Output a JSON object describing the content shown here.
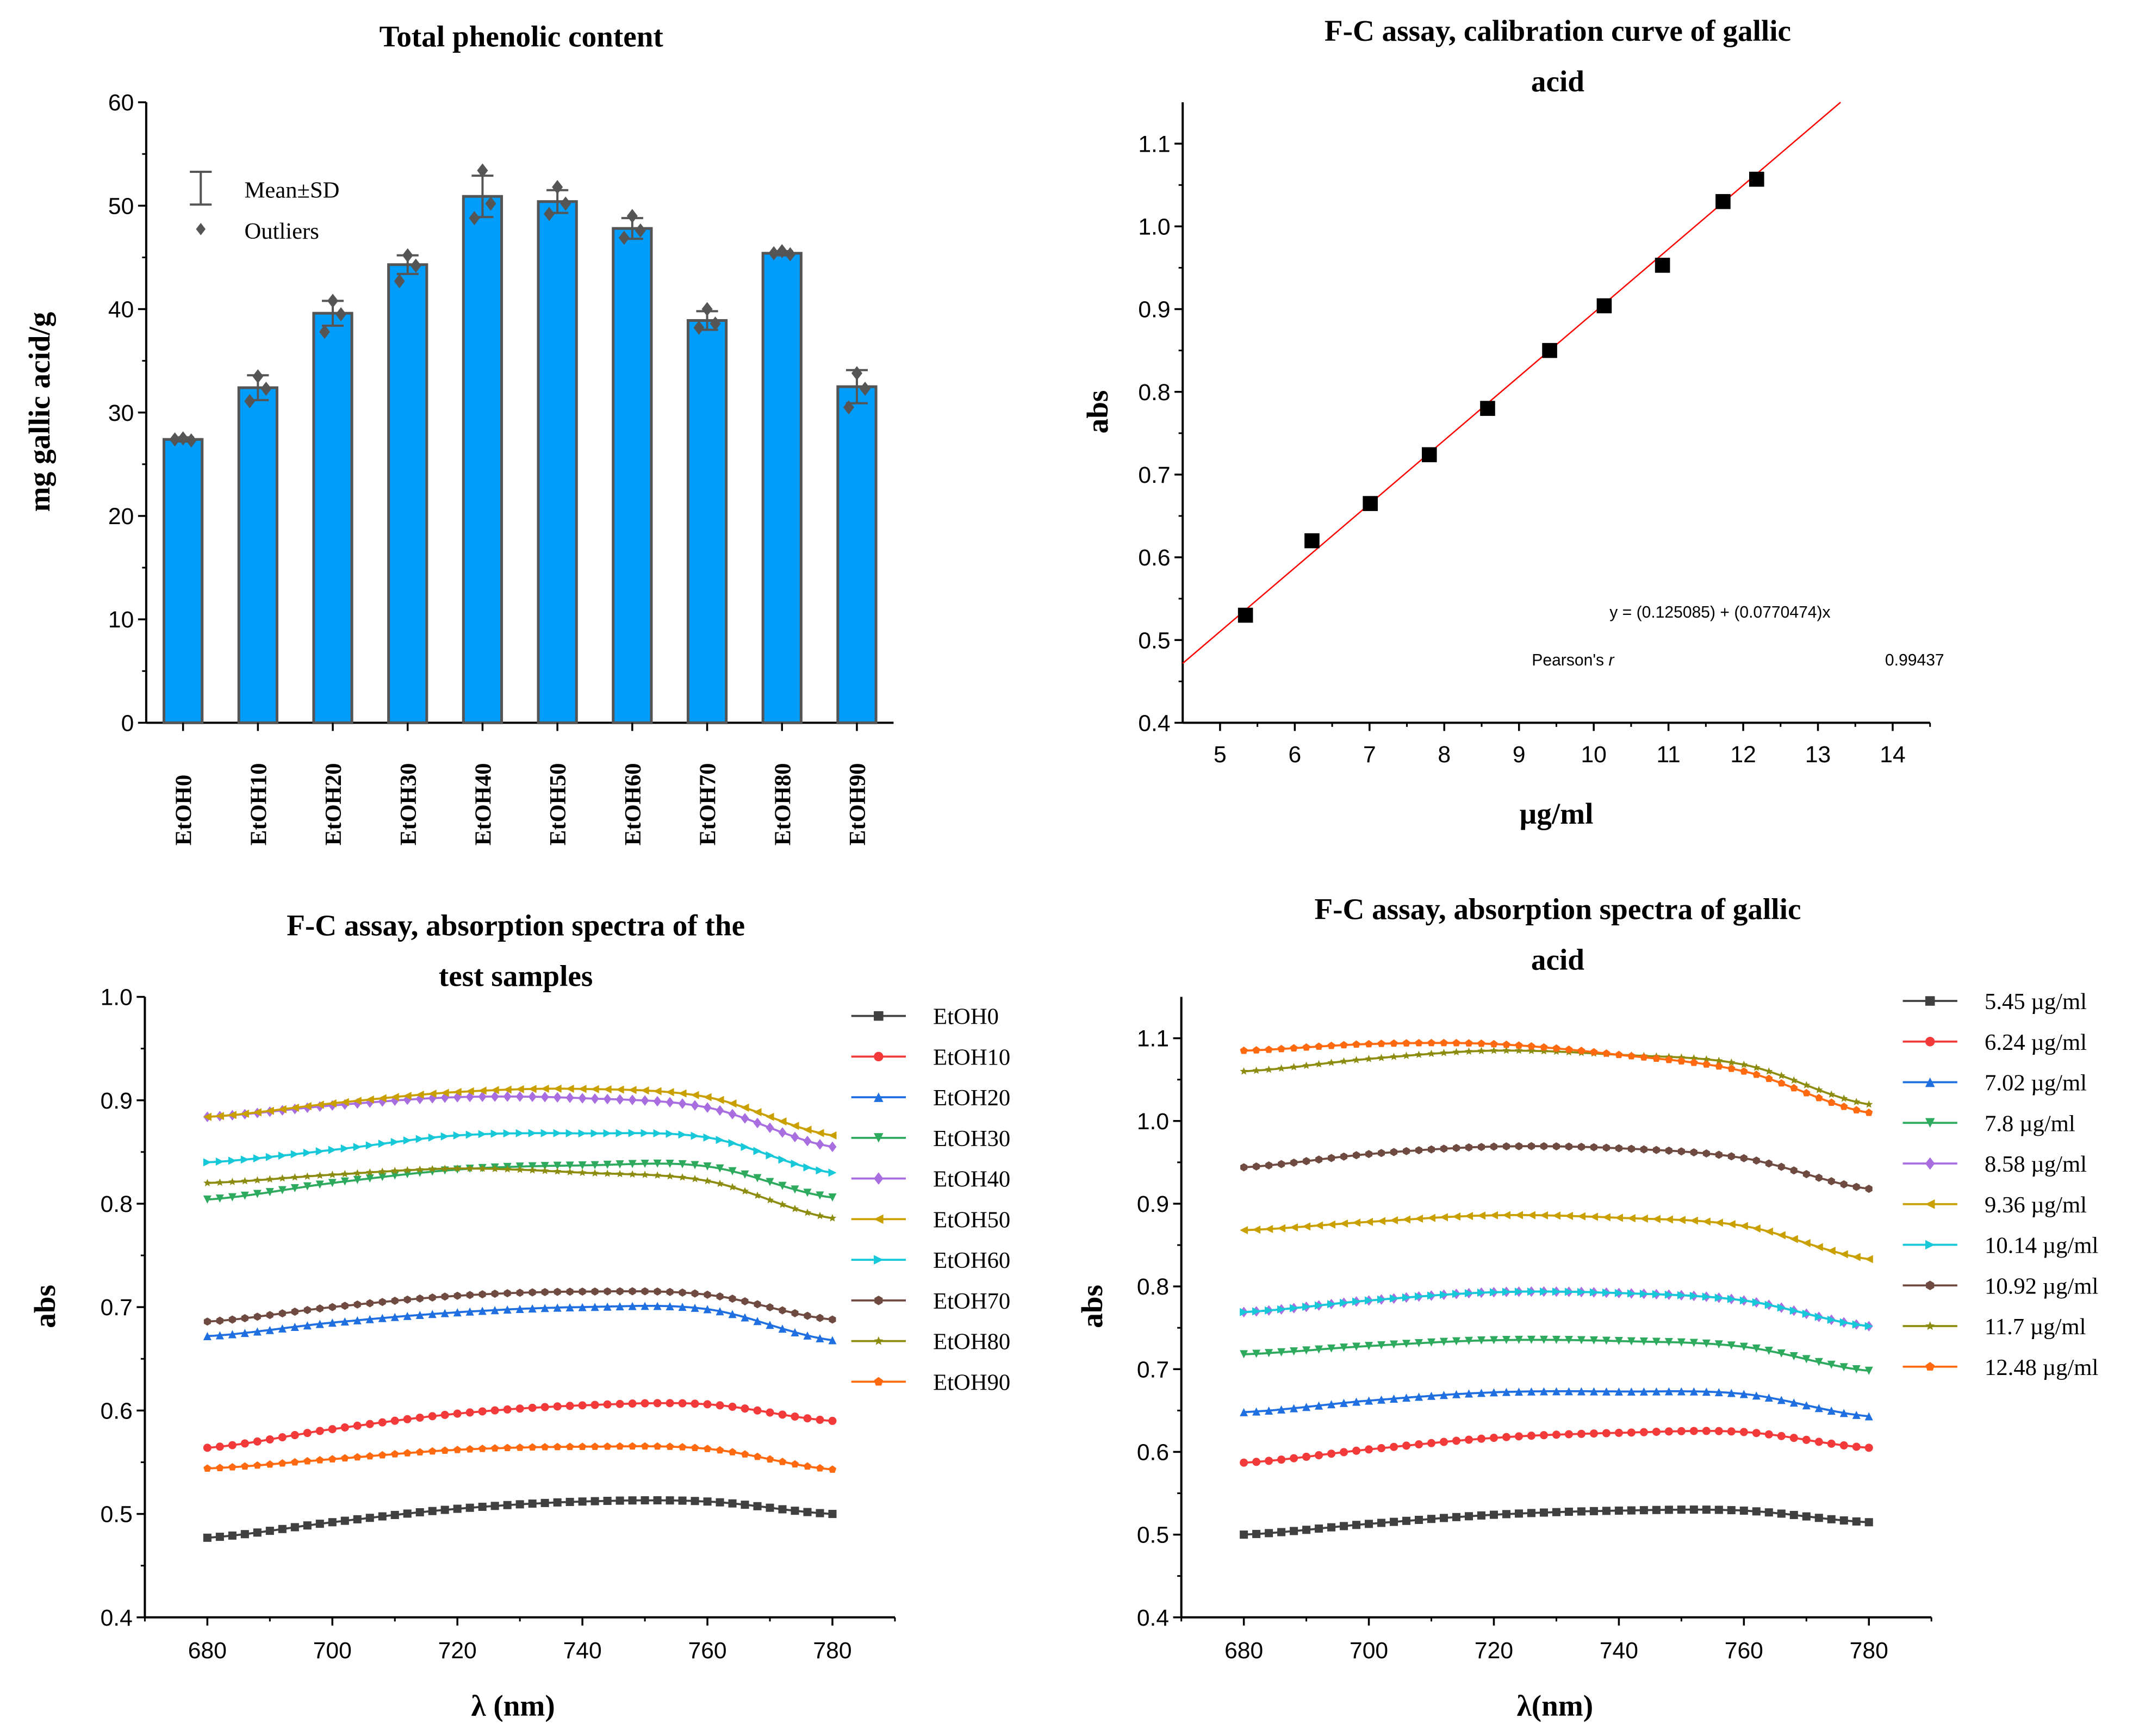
{
  "chart_data": [
    {
      "type": "bar",
      "title": "Total phenolic content",
      "xlabel": "",
      "ylabel": "mg gallic acid/g",
      "ylim": [
        0,
        60
      ],
      "yticks": [
        0,
        10,
        20,
        30,
        40,
        50,
        60
      ],
      "categories": [
        "EtOH0",
        "EtOH10",
        "EtOH20",
        "EtOH30",
        "EtOH40",
        "EtOH50",
        "EtOH60",
        "EtOH70",
        "EtOH80",
        "EtOH90"
      ],
      "values": [
        27.4,
        32.4,
        39.6,
        44.3,
        50.9,
        50.4,
        47.8,
        38.9,
        45.4,
        32.5
      ],
      "sd": [
        0.2,
        1.2,
        1.2,
        0.9,
        2.0,
        1.1,
        1.0,
        0.9,
        0.2,
        1.6
      ],
      "points": [
        [
          27.5,
          27.3,
          27.4
        ],
        [
          33.5,
          32.3,
          31.1
        ],
        [
          40.8,
          39.5,
          37.8
        ],
        [
          45.2,
          44.2,
          42.7
        ],
        [
          53.4,
          50.2,
          48.8
        ],
        [
          51.8,
          50.2,
          49.2
        ],
        [
          49.0,
          47.6,
          46.9
        ],
        [
          40.0,
          38.6,
          38.2
        ],
        [
          45.6,
          45.3,
          45.4
        ],
        [
          33.8,
          32.3,
          30.5
        ]
      ],
      "legend": [
        "Mean±SD",
        "Outliers"
      ],
      "bar_color": "#009dfd",
      "edge_color": "#555555"
    },
    {
      "type": "scatter",
      "title": "F-C assay, calibration curve of gallic acid",
      "xlabel": "µg/ml",
      "ylabel": "abs",
      "xlim": [
        4.5,
        14.5
      ],
      "ylim": [
        0.4,
        1.15
      ],
      "xticks": [
        5,
        6,
        7,
        8,
        9,
        10,
        11,
        12,
        13,
        14
      ],
      "yticks": [
        "0.4",
        "0.5",
        "0.6",
        "0.7",
        "0.8",
        "0.9",
        "1.0",
        "1.1"
      ],
      "x": [
        5.34,
        6.23,
        7.01,
        7.8,
        8.58,
        9.41,
        10.14,
        10.92,
        11.73,
        12.18
      ],
      "y": [
        0.53,
        0.62,
        0.665,
        0.724,
        0.78,
        0.85,
        0.904,
        0.953,
        1.03,
        1.057
      ],
      "fit": {
        "intercept": 0.125085,
        "slope": 0.0770474,
        "equation": "y = (0.125085) + (0.0770474)x",
        "r_label": "Pearson's ",
        "r_italic": "r",
        "r_value": "0.99437",
        "color": "#ff0000"
      }
    },
    {
      "type": "line",
      "title": "F-C assay, absorption spectra of the test samples",
      "xlabel": "λ (nm)",
      "ylabel": "abs",
      "xlim": [
        670,
        790
      ],
      "ylim": [
        0.4,
        1.0
      ],
      "xticks": [
        680,
        700,
        720,
        740,
        760,
        780
      ],
      "yticks": [
        "0.4",
        "0.5",
        "0.6",
        "0.7",
        "0.8",
        "0.9",
        "1.0"
      ],
      "legend": "right",
      "x": [
        680,
        700,
        720,
        740,
        760,
        780
      ],
      "series": [
        {
          "name": "EtOH0",
          "color": "#404040",
          "marker": "square",
          "values": [
            0.477,
            0.492,
            0.505,
            0.512,
            0.512,
            0.5
          ]
        },
        {
          "name": "EtOH10",
          "color": "#f23a3a",
          "marker": "circle",
          "values": [
            0.564,
            0.582,
            0.597,
            0.605,
            0.606,
            0.59
          ]
        },
        {
          "name": "EtOH20",
          "color": "#1f6fe0",
          "marker": "triangle-up",
          "values": [
            0.672,
            0.685,
            0.695,
            0.7,
            0.698,
            0.668
          ]
        },
        {
          "name": "EtOH30",
          "color": "#2eaa5e",
          "marker": "triangle-down",
          "values": [
            0.804,
            0.82,
            0.833,
            0.837,
            0.836,
            0.806
          ]
        },
        {
          "name": "EtOH40",
          "color": "#a86ee0",
          "marker": "diamond",
          "values": [
            0.884,
            0.895,
            0.903,
            0.902,
            0.893,
            0.855
          ]
        },
        {
          "name": "EtOH50",
          "color": "#c9a000",
          "marker": "triangle-left",
          "values": [
            0.884,
            0.897,
            0.908,
            0.911,
            0.903,
            0.866
          ]
        },
        {
          "name": "EtOH60",
          "color": "#17c8d8",
          "marker": "triangle-right",
          "values": [
            0.84,
            0.852,
            0.866,
            0.868,
            0.864,
            0.83
          ]
        },
        {
          "name": "EtOH70",
          "color": "#6e4a40",
          "marker": "hexagon",
          "values": [
            0.686,
            0.7,
            0.711,
            0.715,
            0.712,
            0.688
          ]
        },
        {
          "name": "EtOH80",
          "color": "#8c8c10",
          "marker": "star",
          "values": [
            0.82,
            0.828,
            0.834,
            0.83,
            0.822,
            0.786
          ]
        },
        {
          "name": "EtOH90",
          "color": "#ff6a10",
          "marker": "pentagon",
          "values": [
            0.544,
            0.553,
            0.562,
            0.565,
            0.563,
            0.543
          ]
        }
      ]
    },
    {
      "type": "line",
      "title": "F-C assay, absorption spectra of gallic acid",
      "xlabel": "λ(nm)",
      "ylabel": "abs",
      "xlim": [
        670,
        790
      ],
      "ylim": [
        0.4,
        1.15
      ],
      "xticks": [
        680,
        700,
        720,
        740,
        760,
        780
      ],
      "yticks": [
        "0.4",
        "0.5",
        "0.6",
        "0.7",
        "0.8",
        "0.9",
        "1.0",
        "1.1"
      ],
      "legend": "right",
      "x": [
        680,
        700,
        720,
        740,
        760,
        780
      ],
      "series": [
        {
          "name": "5.45 µg/ml",
          "color": "#404040",
          "marker": "square",
          "values": [
            0.5,
            0.513,
            0.524,
            0.529,
            0.529,
            0.515
          ]
        },
        {
          "name": "6.24 µg/ml",
          "color": "#f23a3a",
          "marker": "circle",
          "values": [
            0.587,
            0.603,
            0.617,
            0.623,
            0.624,
            0.605
          ]
        },
        {
          "name": "7.02 µg/ml",
          "color": "#1f6fe0",
          "marker": "triangle-up",
          "values": [
            0.648,
            0.662,
            0.672,
            0.673,
            0.67,
            0.643
          ]
        },
        {
          "name": "7.8 µg/ml",
          "color": "#2eaa5e",
          "marker": "triangle-down",
          "values": [
            0.718,
            0.728,
            0.735,
            0.734,
            0.727,
            0.698
          ]
        },
        {
          "name": "8.58 µg/ml",
          "color": "#a86ee0",
          "marker": "diamond",
          "values": [
            0.769,
            0.783,
            0.793,
            0.792,
            0.783,
            0.752
          ]
        },
        {
          "name": "9.36 µg/ml",
          "color": "#c9a000",
          "marker": "triangle-left",
          "values": [
            0.868,
            0.878,
            0.886,
            0.883,
            0.873,
            0.833
          ]
        },
        {
          "name": "10.14 µg/ml",
          "color": "#17c8d8",
          "marker": "triangle-right",
          "values": [
            0.769,
            0.783,
            0.793,
            0.792,
            0.783,
            0.752
          ]
        },
        {
          "name": "10.92 µg/ml",
          "color": "#6e4a40",
          "marker": "hexagon",
          "values": [
            0.944,
            0.96,
            0.969,
            0.967,
            0.955,
            0.918
          ]
        },
        {
          "name": "11.7 µg/ml",
          "color": "#8c8c10",
          "marker": "star",
          "values": [
            1.06,
            1.075,
            1.085,
            1.08,
            1.068,
            1.02
          ]
        },
        {
          "name": "12.48 µg/ml",
          "color": "#ff6a10",
          "marker": "pentagon",
          "values": [
            1.085,
            1.093,
            1.093,
            1.08,
            1.06,
            1.01
          ]
        }
      ]
    }
  ]
}
